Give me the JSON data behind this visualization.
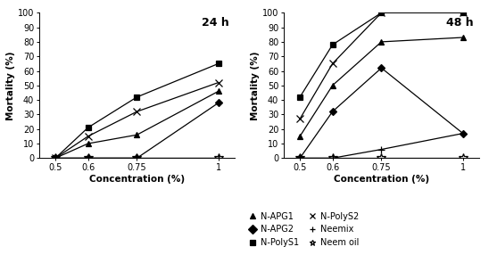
{
  "x": [
    0.5,
    0.6,
    0.75,
    1.0
  ],
  "panel1_title": "24 h",
  "panel2_title": "48 h",
  "ylabel": "Mortality (%)",
  "xlabel": "Concentration (%)",
  "xticks": [
    0.5,
    0.6,
    0.75,
    1.0
  ],
  "xtick_labels": [
    "0.5",
    "0.6",
    "0.75",
    "1"
  ],
  "ylim": [
    0,
    100
  ],
  "yticks": [
    0,
    10,
    20,
    30,
    40,
    50,
    60,
    70,
    80,
    90,
    100
  ],
  "series_24h": {
    "N-APG1": [
      0,
      10,
      16,
      46
    ],
    "N-APG2": [
      0,
      0,
      0,
      38
    ],
    "N-PolyS1": [
      0,
      21,
      42,
      65
    ],
    "N-PolyS2": [
      0,
      15,
      32,
      52
    ],
    "Neemix": [
      0,
      0,
      0,
      0
    ],
    "Neem oil": [
      0,
      0,
      0,
      0
    ]
  },
  "series_48h": {
    "N-APG1": [
      15,
      50,
      80,
      83
    ],
    "N-APG2": [
      0,
      32,
      62,
      17
    ],
    "N-PolyS1": [
      42,
      78,
      100,
      100
    ],
    "N-PolyS2": [
      27,
      65,
      100,
      100
    ],
    "Neemix": [
      0,
      0,
      6,
      17
    ],
    "Neem oil": [
      0,
      0,
      0,
      0
    ]
  },
  "marker_styles": {
    "N-APG1": {
      "marker": "^",
      "ms": 5,
      "filled": true
    },
    "N-APG2": {
      "marker": "D",
      "ms": 4,
      "filled": true
    },
    "N-PolyS1": {
      "marker": "s",
      "ms": 5,
      "filled": true
    },
    "N-PolyS2": {
      "marker": "x",
      "ms": 6,
      "filled": false
    },
    "Neemix": {
      "marker": "+",
      "ms": 6,
      "filled": false
    },
    "Neem oil": {
      "marker": "*",
      "ms": 7,
      "filled": false
    }
  },
  "series_order": [
    "N-PolyS1",
    "N-PolyS2",
    "N-APG1",
    "N-APG2",
    "Neemix",
    "Neem oil"
  ],
  "legend_entries": [
    {
      "label": "N-APG1",
      "marker": "^",
      "filled": true
    },
    {
      "label": "N-APG2",
      "marker": "D",
      "filled": true
    },
    {
      "label": "N-PolyS1",
      "marker": "s",
      "filled": true
    },
    {
      "label": "N-PolyS2",
      "marker": "x",
      "filled": false
    },
    {
      "label": "Neemix",
      "marker": "+",
      "filled": false
    },
    {
      "label": "Neem oil",
      "marker": "*",
      "filled": false
    }
  ]
}
